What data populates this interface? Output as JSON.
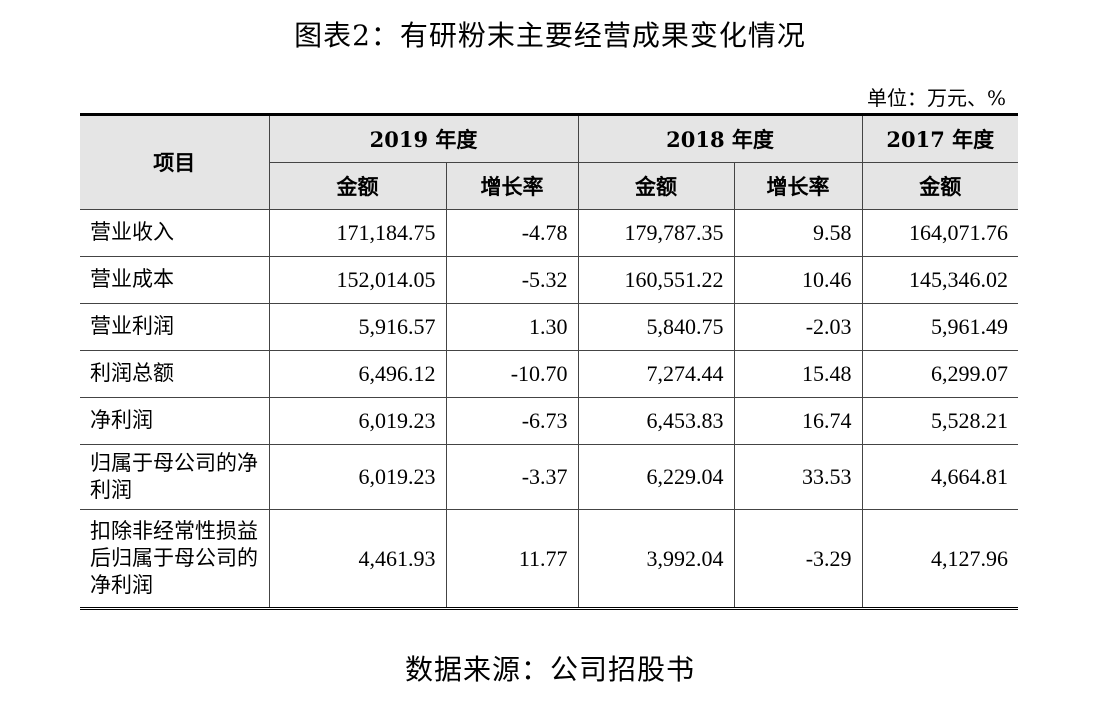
{
  "title": "图表2：有研粉末主要经营成果变化情况",
  "unit": "单位：万元、%",
  "table": {
    "header": {
      "item_label": "项目",
      "year_2019": "2019 年度",
      "year_2018": "2018 年度",
      "year_2017": "2017 年度",
      "amount": "金额",
      "growth": "增长率"
    },
    "rows": [
      {
        "label": "营业收入",
        "v2019": "171,184.75",
        "g2019": "-4.78",
        "v2018": "179,787.35",
        "g2018": "9.58",
        "v2017": "164,071.76"
      },
      {
        "label": "营业成本",
        "v2019": "152,014.05",
        "g2019": "-5.32",
        "v2018": "160,551.22",
        "g2018": "10.46",
        "v2017": "145,346.02"
      },
      {
        "label": "营业利润",
        "v2019": "5,916.57",
        "g2019": "1.30",
        "v2018": "5,840.75",
        "g2018": "-2.03",
        "v2017": "5,961.49"
      },
      {
        "label": "利润总额",
        "v2019": "6,496.12",
        "g2019": "-10.70",
        "v2018": "7,274.44",
        "g2018": "15.48",
        "v2017": "6,299.07"
      },
      {
        "label": "净利润",
        "v2019": "6,019.23",
        "g2019": "-6.73",
        "v2018": "6,453.83",
        "g2018": "16.74",
        "v2017": "5,528.21"
      },
      {
        "label": "归属于母公司的净利润",
        "v2019": "6,019.23",
        "g2019": "-3.37",
        "v2018": "6,229.04",
        "g2018": "33.53",
        "v2017": "4,664.81"
      },
      {
        "label": "扣除非经常性损益后归属于母公司的净利润",
        "v2019": "4,461.93",
        "g2019": "11.77",
        "v2018": "3,992.04",
        "g2018": "-3.29",
        "v2017": "4,127.96"
      }
    ]
  },
  "source": "数据来源：公司招股书"
}
